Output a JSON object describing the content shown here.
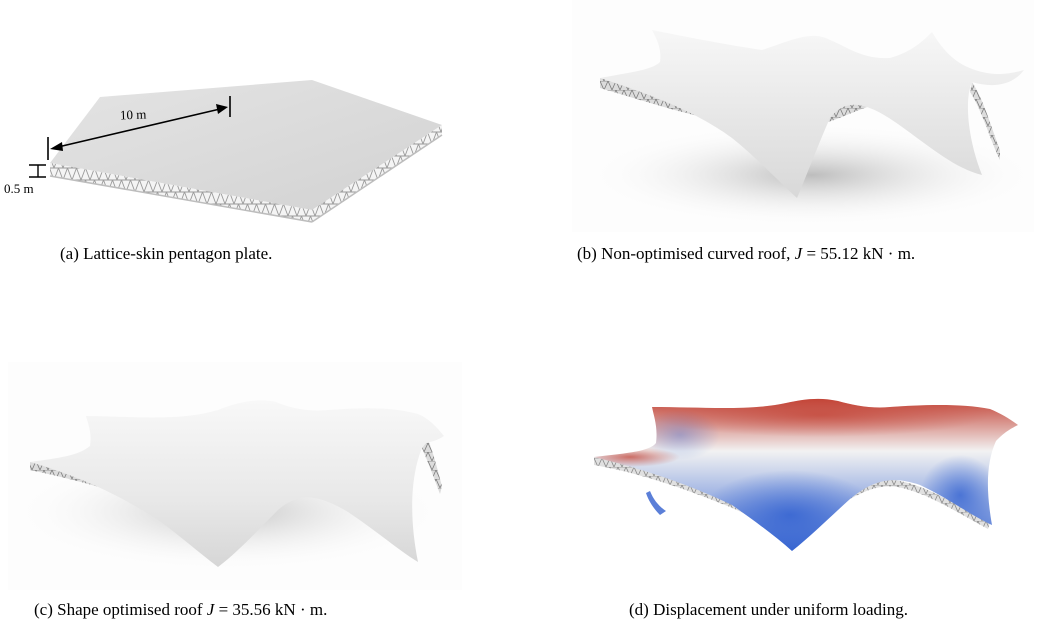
{
  "figure": {
    "panel_a": {
      "caption": "(a) Lattice-skin pentagon plate.",
      "dim_length": "10 m",
      "dim_thickness": "0.5 m"
    },
    "panel_b": {
      "caption_prefix": "(b) Non-optimised curved roof, ",
      "caption_var": "J",
      "caption_value": " = 55.12 kN · m."
    },
    "panel_c": {
      "caption_prefix": "(c) Shape optimised roof ",
      "caption_var": "J",
      "caption_value": " = 35.56 kN · m."
    },
    "panel_d": {
      "caption": "(d) Displacement under uniform loading.",
      "colors": {
        "high": "#c0392b",
        "mid": "#f2f2f2",
        "low": "#2f5fd0"
      }
    }
  }
}
